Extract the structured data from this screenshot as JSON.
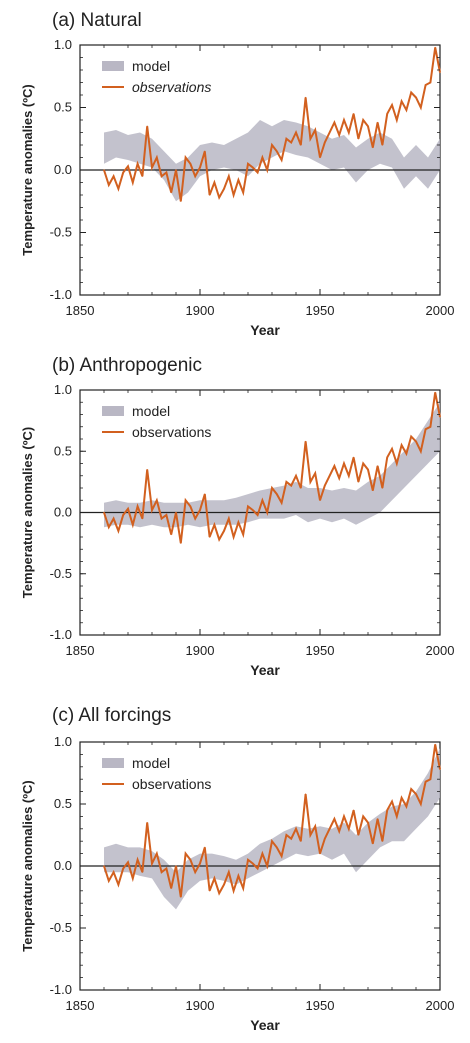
{
  "chart_data": [
    {
      "type": "line",
      "title": "(a) Natural",
      "xlabel": "Year",
      "ylabel": "Temperature anomalies (ºC)",
      "xlim": [
        1850,
        2000
      ],
      "ylim": [
        -1.0,
        1.0
      ],
      "xticks": [
        "1850",
        "1900",
        "1950",
        "2000"
      ],
      "yticks": [
        "1.0",
        "0.5",
        "0.0",
        "-0.5",
        "-1.0"
      ],
      "legend": {
        "position": "top-left",
        "model_label": "model",
        "obs_label": "observations",
        "obs_italic": true
      },
      "series": [
        {
          "name": "model",
          "style": "band",
          "color": "#b9b7c4",
          "x": [
            1860,
            1865,
            1870,
            1875,
            1880,
            1885,
            1890,
            1895,
            1900,
            1905,
            1910,
            1915,
            1920,
            1925,
            1930,
            1935,
            1940,
            1945,
            1950,
            1955,
            1960,
            1965,
            1970,
            1975,
            1980,
            1985,
            1990,
            1995,
            2000
          ],
          "lower": [
            0.05,
            0.1,
            0.08,
            0.05,
            0.02,
            -0.08,
            -0.25,
            -0.18,
            -0.05,
            0.0,
            0.02,
            0.0,
            -0.05,
            0.05,
            0.1,
            0.15,
            0.12,
            0.1,
            0.05,
            0.0,
            0.02,
            -0.1,
            0.0,
            0.05,
            0.02,
            -0.15,
            -0.05,
            -0.15,
            0.0
          ],
          "upper": [
            0.3,
            0.32,
            0.28,
            0.3,
            0.25,
            0.15,
            0.05,
            0.1,
            0.2,
            0.22,
            0.2,
            0.25,
            0.3,
            0.4,
            0.35,
            0.4,
            0.38,
            0.35,
            0.3,
            0.25,
            0.28,
            0.18,
            0.25,
            0.3,
            0.25,
            0.1,
            0.2,
            0.1,
            0.25
          ]
        },
        {
          "name": "observations",
          "style": "line",
          "color": "#d2601f",
          "x": [
            1860,
            1862,
            1864,
            1866,
            1868,
            1870,
            1872,
            1874,
            1876,
            1878,
            1880,
            1882,
            1884,
            1886,
            1888,
            1890,
            1892,
            1894,
            1896,
            1898,
            1900,
            1902,
            1904,
            1906,
            1908,
            1910,
            1912,
            1914,
            1916,
            1918,
            1920,
            1922,
            1924,
            1926,
            1928,
            1930,
            1932,
            1934,
            1936,
            1938,
            1940,
            1942,
            1944,
            1946,
            1948,
            1950,
            1952,
            1954,
            1956,
            1958,
            1960,
            1962,
            1964,
            1966,
            1968,
            1970,
            1972,
            1974,
            1976,
            1978,
            1980,
            1982,
            1984,
            1986,
            1988,
            1990,
            1992,
            1994,
            1996,
            1998,
            2000
          ],
          "y": [
            0.0,
            -0.12,
            -0.05,
            -0.15,
            -0.02,
            0.03,
            -0.1,
            0.05,
            -0.05,
            0.35,
            0.02,
            0.1,
            -0.05,
            -0.02,
            -0.18,
            0.0,
            -0.25,
            0.1,
            0.05,
            -0.05,
            0.02,
            0.15,
            -0.2,
            -0.1,
            -0.22,
            -0.15,
            -0.05,
            -0.2,
            -0.08,
            -0.18,
            0.05,
            0.02,
            -0.02,
            0.1,
            0.0,
            0.2,
            0.15,
            0.08,
            0.25,
            0.22,
            0.3,
            0.2,
            0.58,
            0.25,
            0.32,
            0.1,
            0.22,
            0.3,
            0.38,
            0.28,
            0.4,
            0.3,
            0.45,
            0.25,
            0.4,
            0.35,
            0.18,
            0.38,
            0.2,
            0.45,
            0.52,
            0.4,
            0.55,
            0.48,
            0.62,
            0.58,
            0.5,
            0.68,
            0.7,
            0.98,
            0.78
          ]
        }
      ]
    },
    {
      "type": "line",
      "title": "(b) Anthropogenic",
      "xlabel": "Year",
      "ylabel": "Temperature anomalies (ºC)",
      "xlim": [
        1850,
        2000
      ],
      "ylim": [
        -1.0,
        1.0
      ],
      "xticks": [
        "1850",
        "1900",
        "1950",
        "2000"
      ],
      "yticks": [
        "1.0",
        "0.5",
        "0.0",
        "-0.5",
        "-1.0"
      ],
      "legend": {
        "position": "top-left",
        "model_label": "model",
        "obs_label": "observations",
        "obs_italic": false
      },
      "series": [
        {
          "name": "model",
          "style": "band",
          "color": "#b9b7c4",
          "x": [
            1860,
            1865,
            1870,
            1875,
            1880,
            1885,
            1890,
            1895,
            1900,
            1905,
            1910,
            1915,
            1920,
            1925,
            1930,
            1935,
            1940,
            1945,
            1950,
            1955,
            1960,
            1965,
            1970,
            1975,
            1980,
            1985,
            1990,
            1995,
            2000
          ],
          "lower": [
            -0.12,
            -0.1,
            -0.1,
            -0.12,
            -0.1,
            -0.12,
            -0.12,
            -0.1,
            -0.12,
            -0.1,
            -0.1,
            -0.1,
            -0.08,
            -0.05,
            -0.05,
            -0.05,
            -0.02,
            -0.08,
            -0.05,
            -0.08,
            -0.05,
            -0.1,
            -0.05,
            0.0,
            0.1,
            0.2,
            0.3,
            0.4,
            0.5
          ],
          "upper": [
            0.08,
            0.1,
            0.08,
            0.08,
            0.1,
            0.08,
            0.08,
            0.08,
            0.1,
            0.1,
            0.1,
            0.12,
            0.15,
            0.18,
            0.2,
            0.22,
            0.25,
            0.2,
            0.2,
            0.18,
            0.2,
            0.18,
            0.25,
            0.3,
            0.4,
            0.5,
            0.6,
            0.75,
            0.9
          ]
        },
        {
          "name": "observations",
          "style": "line",
          "color": "#d2601f",
          "x": [
            1860,
            1862,
            1864,
            1866,
            1868,
            1870,
            1872,
            1874,
            1876,
            1878,
            1880,
            1882,
            1884,
            1886,
            1888,
            1890,
            1892,
            1894,
            1896,
            1898,
            1900,
            1902,
            1904,
            1906,
            1908,
            1910,
            1912,
            1914,
            1916,
            1918,
            1920,
            1922,
            1924,
            1926,
            1928,
            1930,
            1932,
            1934,
            1936,
            1938,
            1940,
            1942,
            1944,
            1946,
            1948,
            1950,
            1952,
            1954,
            1956,
            1958,
            1960,
            1962,
            1964,
            1966,
            1968,
            1970,
            1972,
            1974,
            1976,
            1978,
            1980,
            1982,
            1984,
            1986,
            1988,
            1990,
            1992,
            1994,
            1996,
            1998,
            2000
          ],
          "y": [
            0.0,
            -0.12,
            -0.05,
            -0.15,
            -0.02,
            0.03,
            -0.1,
            0.05,
            -0.05,
            0.35,
            0.02,
            0.1,
            -0.05,
            -0.02,
            -0.18,
            0.0,
            -0.25,
            0.1,
            0.05,
            -0.05,
            0.02,
            0.15,
            -0.2,
            -0.1,
            -0.22,
            -0.15,
            -0.05,
            -0.2,
            -0.08,
            -0.18,
            0.05,
            0.02,
            -0.02,
            0.1,
            0.0,
            0.2,
            0.15,
            0.08,
            0.25,
            0.22,
            0.3,
            0.2,
            0.58,
            0.25,
            0.32,
            0.1,
            0.22,
            0.3,
            0.38,
            0.28,
            0.4,
            0.3,
            0.45,
            0.25,
            0.4,
            0.35,
            0.18,
            0.38,
            0.2,
            0.45,
            0.52,
            0.4,
            0.55,
            0.48,
            0.62,
            0.58,
            0.5,
            0.68,
            0.7,
            0.98,
            0.78
          ]
        }
      ]
    },
    {
      "type": "line",
      "title": "(c) All forcings",
      "xlabel": "Year",
      "ylabel": "Temperature anomalies (ºC)",
      "xlim": [
        1850,
        2000
      ],
      "ylim": [
        -1.0,
        1.0
      ],
      "xticks": [
        "1850",
        "1900",
        "1950",
        "2000"
      ],
      "yticks": [
        "1.0",
        "0.5",
        "0.0",
        "-0.5",
        "-1.0"
      ],
      "legend": {
        "position": "top-left",
        "model_label": "model",
        "obs_label": "observations",
        "obs_italic": false
      },
      "series": [
        {
          "name": "model",
          "style": "band",
          "color": "#b9b7c4",
          "x": [
            1860,
            1865,
            1870,
            1875,
            1880,
            1885,
            1890,
            1895,
            1900,
            1905,
            1910,
            1915,
            1920,
            1925,
            1930,
            1935,
            1940,
            1945,
            1950,
            1955,
            1960,
            1965,
            1970,
            1975,
            1980,
            1985,
            1990,
            1995,
            2000
          ],
          "lower": [
            -0.05,
            -0.05,
            -0.05,
            -0.08,
            -0.1,
            -0.25,
            -0.35,
            -0.2,
            -0.12,
            -0.1,
            -0.12,
            -0.15,
            -0.1,
            -0.05,
            0.0,
            0.05,
            0.1,
            0.08,
            0.1,
            0.05,
            0.1,
            -0.05,
            0.05,
            0.15,
            0.2,
            0.2,
            0.3,
            0.4,
            0.55
          ],
          "upper": [
            0.15,
            0.18,
            0.15,
            0.15,
            0.12,
            0.05,
            -0.05,
            0.05,
            0.1,
            0.1,
            0.08,
            0.05,
            0.1,
            0.18,
            0.22,
            0.28,
            0.32,
            0.3,
            0.32,
            0.3,
            0.35,
            0.25,
            0.35,
            0.42,
            0.48,
            0.5,
            0.6,
            0.75,
            0.95
          ]
        },
        {
          "name": "observations",
          "style": "line",
          "color": "#d2601f",
          "x": [
            1860,
            1862,
            1864,
            1866,
            1868,
            1870,
            1872,
            1874,
            1876,
            1878,
            1880,
            1882,
            1884,
            1886,
            1888,
            1890,
            1892,
            1894,
            1896,
            1898,
            1900,
            1902,
            1904,
            1906,
            1908,
            1910,
            1912,
            1914,
            1916,
            1918,
            1920,
            1922,
            1924,
            1926,
            1928,
            1930,
            1932,
            1934,
            1936,
            1938,
            1940,
            1942,
            1944,
            1946,
            1948,
            1950,
            1952,
            1954,
            1956,
            1958,
            1960,
            1962,
            1964,
            1966,
            1968,
            1970,
            1972,
            1974,
            1976,
            1978,
            1980,
            1982,
            1984,
            1986,
            1988,
            1990,
            1992,
            1994,
            1996,
            1998,
            2000
          ],
          "y": [
            0.0,
            -0.12,
            -0.05,
            -0.15,
            -0.02,
            0.03,
            -0.1,
            0.05,
            -0.05,
            0.35,
            0.02,
            0.1,
            -0.05,
            -0.02,
            -0.18,
            0.0,
            -0.25,
            0.1,
            0.05,
            -0.05,
            0.02,
            0.15,
            -0.2,
            -0.1,
            -0.22,
            -0.15,
            -0.05,
            -0.2,
            -0.08,
            -0.18,
            0.05,
            0.02,
            -0.02,
            0.1,
            0.0,
            0.2,
            0.15,
            0.08,
            0.25,
            0.22,
            0.3,
            0.2,
            0.58,
            0.25,
            0.32,
            0.1,
            0.22,
            0.3,
            0.38,
            0.28,
            0.4,
            0.3,
            0.45,
            0.25,
            0.4,
            0.35,
            0.18,
            0.38,
            0.2,
            0.45,
            0.52,
            0.4,
            0.55,
            0.48,
            0.62,
            0.58,
            0.5,
            0.68,
            0.7,
            0.98,
            0.78
          ]
        }
      ]
    }
  ]
}
